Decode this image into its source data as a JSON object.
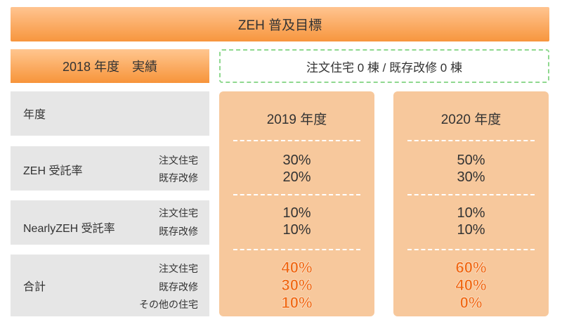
{
  "title": "ZEH 普及目標",
  "year2018": {
    "label": "2018 年度　実績",
    "result": "注文住宅 0 棟 / 既存改修 0 棟"
  },
  "rows": {
    "year_header": "年度",
    "zeh": {
      "label": "ZEH 受託率",
      "sub1": "注文住宅",
      "sub2": "既存改修"
    },
    "nearly": {
      "label": "NearlyZEH 受託率",
      "sub1": "注文住宅",
      "sub2": "既存改修"
    },
    "total": {
      "label": "合計",
      "sub1": "注文住宅",
      "sub2": "既存改修",
      "sub3": "その他の住宅"
    }
  },
  "columns": [
    {
      "year": "2019 年度",
      "zeh": [
        "30%",
        "20%"
      ],
      "nearly": [
        "10%",
        "10%"
      ],
      "total": [
        "40%",
        "30%",
        "10%"
      ]
    },
    {
      "year": "2020 年度",
      "zeh": [
        "50%",
        "30%"
      ],
      "nearly": [
        "10%",
        "10%"
      ],
      "total": [
        "60%",
        "40%",
        "0%"
      ]
    }
  ],
  "colors": {
    "header_orange": "#f7963e",
    "column_fill": "#f7c89c",
    "total_text": "#f06a14",
    "dashed_green": "#8fd88f",
    "row_grey": "#e6e6e6"
  }
}
